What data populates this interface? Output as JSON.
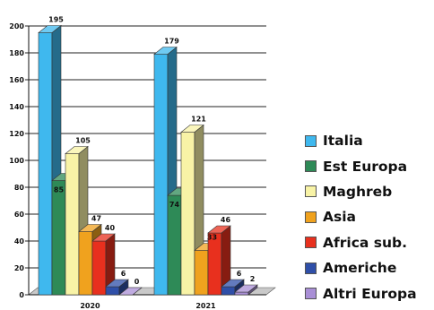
{
  "chart_data": {
    "type": "bar",
    "title": "",
    "xlabel": "",
    "ylabel": "",
    "categories": [
      "2020",
      "2021"
    ],
    "ylim": [
      0,
      200
    ],
    "yticks": [
      0,
      20,
      40,
      60,
      80,
      100,
      120,
      140,
      160,
      180,
      200
    ],
    "grid": true,
    "legend_position": "right",
    "series": [
      {
        "name": "Italia",
        "values": [
          195,
          179
        ],
        "color": "#3fb8ee"
      },
      {
        "name": "Est Europa",
        "values": [
          85,
          74
        ],
        "color": "#2e8a57"
      },
      {
        "name": "Maghreb",
        "values": [
          105,
          121
        ],
        "color": "#f8f3a6"
      },
      {
        "name": "Asia",
        "values": [
          47,
          33
        ],
        "color": "#f0a21e"
      },
      {
        "name": "Africa sub.",
        "values": [
          40,
          46
        ],
        "color": "#e8301e"
      },
      {
        "name": "Americhe",
        "values": [
          6,
          6
        ],
        "color": "#2f4fa8"
      },
      {
        "name": "Altri Europa",
        "values": [
          0,
          2
        ],
        "color": "#a98fd6"
      }
    ],
    "value_labels": [
      [
        "195",
        "179"
      ],
      [
        "85",
        "74"
      ],
      [
        "105",
        "121"
      ],
      [
        "47",
        "33"
      ],
      [
        "40",
        "46"
      ],
      [
        "6",
        "6"
      ],
      [
        "0",
        "2"
      ]
    ]
  }
}
